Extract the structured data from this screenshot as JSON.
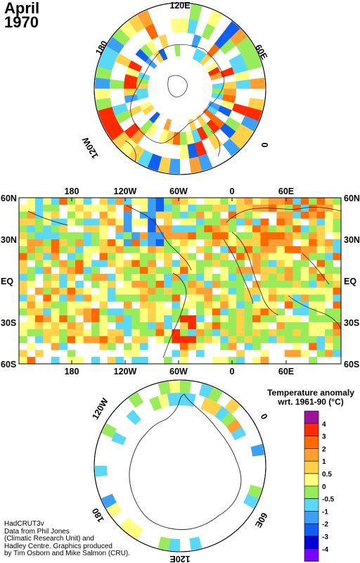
{
  "header": {
    "month": "April",
    "year": "1970"
  },
  "north_map": {
    "labels": {
      "top": "120E",
      "right": "60E",
      "right_low": "0",
      "left": "180",
      "left_low": "120W"
    }
  },
  "global_map": {
    "x_labels": [
      "180",
      "120W",
      "60W",
      "0",
      "60E"
    ],
    "y_labels": [
      "60N",
      "30N",
      "EQ",
      "30S",
      "60S"
    ]
  },
  "south_map": {
    "labels": {
      "left_up": "120W",
      "right_up": "0",
      "left_down": "180",
      "right_down": "60E",
      "bottom": "120E"
    }
  },
  "legend": {
    "title_line1": "Temperature anomaly",
    "title_line2": "wrt. 1961-90 (°C)",
    "ticks": [
      "4",
      "3",
      "2",
      "1",
      "0.5",
      "0",
      "-0.5",
      "-1",
      "-2",
      "-3",
      "-4"
    ],
    "colors": [
      "#a0129a",
      "#ff2a00",
      "#ff6a00",
      "#ffa030",
      "#ffd24a",
      "#ffff80",
      "#98ec5a",
      "#5ad8f8",
      "#3aa0f8",
      "#0f5ff0",
      "#0000d8",
      "#7a00ff"
    ]
  },
  "credit": {
    "line1": "HadCRUT3v",
    "line2": "Data from Phil Jones",
    "line3": "(Climatic Research Unit) and",
    "line4": "Hadley Centre. Graphics produced",
    "line5": "by Tim Osborn and Mike Salmon (CRU)."
  }
}
